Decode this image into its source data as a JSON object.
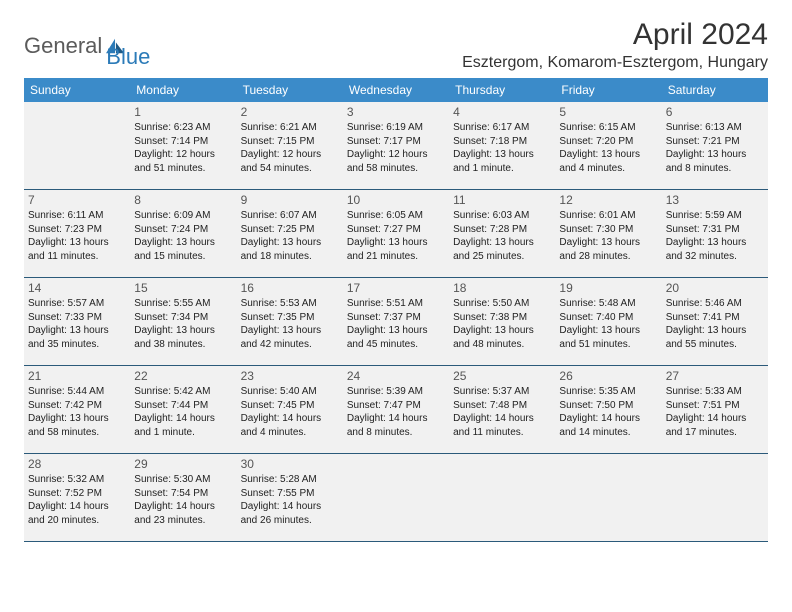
{
  "logo": {
    "text1": "General",
    "text2": "Blue"
  },
  "title": "April 2024",
  "location": "Esztergom, Komarom-Esztergom, Hungary",
  "dayHeaders": [
    "Sunday",
    "Monday",
    "Tuesday",
    "Wednesday",
    "Thursday",
    "Friday",
    "Saturday"
  ],
  "colors": {
    "header_bg": "#3b8bc9",
    "header_text": "#ffffff",
    "cell_bg": "#f1f1f1",
    "cell_border": "#2b5a7a",
    "logo_gray": "#5b5b5b",
    "logo_blue": "#2c7bb8"
  },
  "weeks": [
    [
      {
        "empty": true
      },
      {
        "num": "1",
        "sunrise": "Sunrise: 6:23 AM",
        "sunset": "Sunset: 7:14 PM",
        "day1": "Daylight: 12 hours",
        "day2": "and 51 minutes."
      },
      {
        "num": "2",
        "sunrise": "Sunrise: 6:21 AM",
        "sunset": "Sunset: 7:15 PM",
        "day1": "Daylight: 12 hours",
        "day2": "and 54 minutes."
      },
      {
        "num": "3",
        "sunrise": "Sunrise: 6:19 AM",
        "sunset": "Sunset: 7:17 PM",
        "day1": "Daylight: 12 hours",
        "day2": "and 58 minutes."
      },
      {
        "num": "4",
        "sunrise": "Sunrise: 6:17 AM",
        "sunset": "Sunset: 7:18 PM",
        "day1": "Daylight: 13 hours",
        "day2": "and 1 minute."
      },
      {
        "num": "5",
        "sunrise": "Sunrise: 6:15 AM",
        "sunset": "Sunset: 7:20 PM",
        "day1": "Daylight: 13 hours",
        "day2": "and 4 minutes."
      },
      {
        "num": "6",
        "sunrise": "Sunrise: 6:13 AM",
        "sunset": "Sunset: 7:21 PM",
        "day1": "Daylight: 13 hours",
        "day2": "and 8 minutes."
      }
    ],
    [
      {
        "num": "7",
        "sunrise": "Sunrise: 6:11 AM",
        "sunset": "Sunset: 7:23 PM",
        "day1": "Daylight: 13 hours",
        "day2": "and 11 minutes."
      },
      {
        "num": "8",
        "sunrise": "Sunrise: 6:09 AM",
        "sunset": "Sunset: 7:24 PM",
        "day1": "Daylight: 13 hours",
        "day2": "and 15 minutes."
      },
      {
        "num": "9",
        "sunrise": "Sunrise: 6:07 AM",
        "sunset": "Sunset: 7:25 PM",
        "day1": "Daylight: 13 hours",
        "day2": "and 18 minutes."
      },
      {
        "num": "10",
        "sunrise": "Sunrise: 6:05 AM",
        "sunset": "Sunset: 7:27 PM",
        "day1": "Daylight: 13 hours",
        "day2": "and 21 minutes."
      },
      {
        "num": "11",
        "sunrise": "Sunrise: 6:03 AM",
        "sunset": "Sunset: 7:28 PM",
        "day1": "Daylight: 13 hours",
        "day2": "and 25 minutes."
      },
      {
        "num": "12",
        "sunrise": "Sunrise: 6:01 AM",
        "sunset": "Sunset: 7:30 PM",
        "day1": "Daylight: 13 hours",
        "day2": "and 28 minutes."
      },
      {
        "num": "13",
        "sunrise": "Sunrise: 5:59 AM",
        "sunset": "Sunset: 7:31 PM",
        "day1": "Daylight: 13 hours",
        "day2": "and 32 minutes."
      }
    ],
    [
      {
        "num": "14",
        "sunrise": "Sunrise: 5:57 AM",
        "sunset": "Sunset: 7:33 PM",
        "day1": "Daylight: 13 hours",
        "day2": "and 35 minutes."
      },
      {
        "num": "15",
        "sunrise": "Sunrise: 5:55 AM",
        "sunset": "Sunset: 7:34 PM",
        "day1": "Daylight: 13 hours",
        "day2": "and 38 minutes."
      },
      {
        "num": "16",
        "sunrise": "Sunrise: 5:53 AM",
        "sunset": "Sunset: 7:35 PM",
        "day1": "Daylight: 13 hours",
        "day2": "and 42 minutes."
      },
      {
        "num": "17",
        "sunrise": "Sunrise: 5:51 AM",
        "sunset": "Sunset: 7:37 PM",
        "day1": "Daylight: 13 hours",
        "day2": "and 45 minutes."
      },
      {
        "num": "18",
        "sunrise": "Sunrise: 5:50 AM",
        "sunset": "Sunset: 7:38 PM",
        "day1": "Daylight: 13 hours",
        "day2": "and 48 minutes."
      },
      {
        "num": "19",
        "sunrise": "Sunrise: 5:48 AM",
        "sunset": "Sunset: 7:40 PM",
        "day1": "Daylight: 13 hours",
        "day2": "and 51 minutes."
      },
      {
        "num": "20",
        "sunrise": "Sunrise: 5:46 AM",
        "sunset": "Sunset: 7:41 PM",
        "day1": "Daylight: 13 hours",
        "day2": "and 55 minutes."
      }
    ],
    [
      {
        "num": "21",
        "sunrise": "Sunrise: 5:44 AM",
        "sunset": "Sunset: 7:42 PM",
        "day1": "Daylight: 13 hours",
        "day2": "and 58 minutes."
      },
      {
        "num": "22",
        "sunrise": "Sunrise: 5:42 AM",
        "sunset": "Sunset: 7:44 PM",
        "day1": "Daylight: 14 hours",
        "day2": "and 1 minute."
      },
      {
        "num": "23",
        "sunrise": "Sunrise: 5:40 AM",
        "sunset": "Sunset: 7:45 PM",
        "day1": "Daylight: 14 hours",
        "day2": "and 4 minutes."
      },
      {
        "num": "24",
        "sunrise": "Sunrise: 5:39 AM",
        "sunset": "Sunset: 7:47 PM",
        "day1": "Daylight: 14 hours",
        "day2": "and 8 minutes."
      },
      {
        "num": "25",
        "sunrise": "Sunrise: 5:37 AM",
        "sunset": "Sunset: 7:48 PM",
        "day1": "Daylight: 14 hours",
        "day2": "and 11 minutes."
      },
      {
        "num": "26",
        "sunrise": "Sunrise: 5:35 AM",
        "sunset": "Sunset: 7:50 PM",
        "day1": "Daylight: 14 hours",
        "day2": "and 14 minutes."
      },
      {
        "num": "27",
        "sunrise": "Sunrise: 5:33 AM",
        "sunset": "Sunset: 7:51 PM",
        "day1": "Daylight: 14 hours",
        "day2": "and 17 minutes."
      }
    ],
    [
      {
        "num": "28",
        "sunrise": "Sunrise: 5:32 AM",
        "sunset": "Sunset: 7:52 PM",
        "day1": "Daylight: 14 hours",
        "day2": "and 20 minutes."
      },
      {
        "num": "29",
        "sunrise": "Sunrise: 5:30 AM",
        "sunset": "Sunset: 7:54 PM",
        "day1": "Daylight: 14 hours",
        "day2": "and 23 minutes."
      },
      {
        "num": "30",
        "sunrise": "Sunrise: 5:28 AM",
        "sunset": "Sunset: 7:55 PM",
        "day1": "Daylight: 14 hours",
        "day2": "and 26 minutes."
      },
      {
        "empty": true
      },
      {
        "empty": true
      },
      {
        "empty": true
      },
      {
        "empty": true
      }
    ]
  ]
}
